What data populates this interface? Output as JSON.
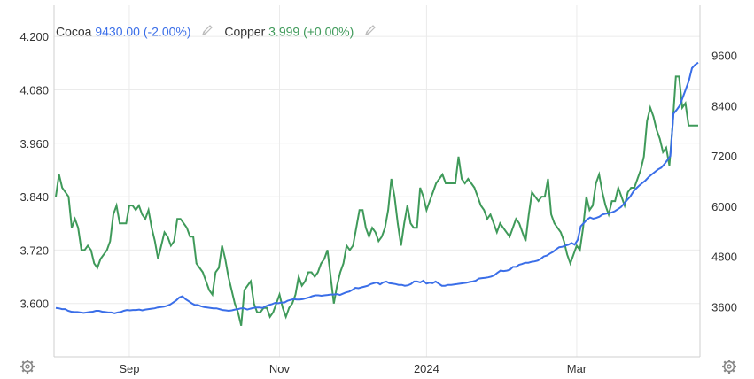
{
  "legend": {
    "cocoa": {
      "name": "Cocoa",
      "value": "9430.00",
      "change": "(-2.00%)",
      "color": "#3a6ee8"
    },
    "copper": {
      "name": "Copper",
      "value": "3.999",
      "change": "(+0.00%)",
      "color": "#3f9a5a"
    }
  },
  "icons": {
    "legend_edit": "pencil-icon",
    "settings": "gear-icon"
  },
  "chart_data": {
    "type": "line",
    "title": "",
    "x": {
      "tick_labels": [
        "Sep",
        "Nov",
        "2024",
        "Mar"
      ]
    },
    "left_axis": {
      "series": "Copper",
      "ticks": [
        "3.600",
        "3.720",
        "3.840",
        "3.960",
        "4.080",
        "4.200"
      ],
      "range": [
        3.48,
        4.27
      ]
    },
    "right_axis": {
      "series": "Cocoa",
      "ticks": [
        "3600",
        "4800",
        "6000",
        "7200",
        "8400",
        "9600"
      ],
      "range": [
        2400,
        10800
      ]
    },
    "grid": true,
    "series": [
      {
        "name": "Copper",
        "axis": "left",
        "color": "#3f9a5a",
        "values": [
          3.84,
          3.89,
          3.86,
          3.85,
          3.84,
          3.77,
          3.79,
          3.77,
          3.72,
          3.72,
          3.73,
          3.72,
          3.69,
          3.68,
          3.7,
          3.71,
          3.72,
          3.74,
          3.8,
          3.82,
          3.78,
          3.78,
          3.78,
          3.82,
          3.82,
          3.81,
          3.82,
          3.8,
          3.79,
          3.81,
          3.77,
          3.74,
          3.7,
          3.73,
          3.76,
          3.75,
          3.73,
          3.74,
          3.79,
          3.79,
          3.78,
          3.77,
          3.75,
          3.75,
          3.69,
          3.68,
          3.67,
          3.65,
          3.63,
          3.62,
          3.67,
          3.68,
          3.73,
          3.7,
          3.66,
          3.63,
          3.6,
          3.58,
          3.55,
          3.63,
          3.64,
          3.65,
          3.6,
          3.58,
          3.58,
          3.59,
          3.59,
          3.57,
          3.58,
          3.6,
          3.62,
          3.59,
          3.57,
          3.59,
          3.6,
          3.62,
          3.66,
          3.64,
          3.65,
          3.67,
          3.67,
          3.66,
          3.67,
          3.69,
          3.7,
          3.72,
          3.66,
          3.6,
          3.64,
          3.67,
          3.69,
          3.73,
          3.72,
          3.73,
          3.77,
          3.81,
          3.81,
          3.77,
          3.75,
          3.77,
          3.76,
          3.74,
          3.75,
          3.77,
          3.81,
          3.88,
          3.84,
          3.78,
          3.73,
          3.78,
          3.82,
          3.78,
          3.77,
          3.77,
          3.86,
          3.84,
          3.81,
          3.83,
          3.85,
          3.87,
          3.88,
          3.89,
          3.87,
          3.87,
          3.87,
          3.87,
          3.93,
          3.88,
          3.87,
          3.88,
          3.87,
          3.86,
          3.84,
          3.82,
          3.81,
          3.79,
          3.8,
          3.78,
          3.76,
          3.78,
          3.77,
          3.76,
          3.75,
          3.77,
          3.79,
          3.78,
          3.76,
          3.74,
          3.8,
          3.85,
          3.84,
          3.83,
          3.84,
          3.84,
          3.88,
          3.8,
          3.78,
          3.77,
          3.76,
          3.74,
          3.71,
          3.69,
          3.71,
          3.73,
          3.72,
          3.77,
          3.84,
          3.81,
          3.82,
          3.87,
          3.89,
          3.85,
          3.82,
          3.8,
          3.83,
          3.83,
          3.86,
          3.84,
          3.82,
          3.85,
          3.86,
          3.86,
          3.88,
          3.9,
          3.93,
          4.01,
          4.04,
          4.02,
          3.99,
          3.97,
          3.94,
          3.95,
          3.91,
          4.0,
          4.11,
          4.11,
          4.04,
          4.05,
          4.0,
          4.0,
          4.0,
          4.0
        ]
      },
      {
        "name": "Cocoa",
        "axis": "right",
        "color": "#3a6ee8",
        "values": [
          3570,
          3560,
          3540,
          3540,
          3500,
          3480,
          3470,
          3470,
          3460,
          3450,
          3460,
          3470,
          3480,
          3500,
          3500,
          3480,
          3470,
          3460,
          3460,
          3440,
          3460,
          3470,
          3500,
          3520,
          3510,
          3520,
          3520,
          3530,
          3510,
          3530,
          3540,
          3550,
          3560,
          3580,
          3590,
          3600,
          3620,
          3650,
          3700,
          3750,
          3820,
          3850,
          3780,
          3730,
          3680,
          3640,
          3640,
          3610,
          3590,
          3580,
          3570,
          3560,
          3560,
          3540,
          3520,
          3510,
          3500,
          3510,
          3530,
          3540,
          3560,
          3560,
          3530,
          3550,
          3570,
          3580,
          3580,
          3570,
          3610,
          3640,
          3660,
          3690,
          3680,
          3700,
          3700,
          3740,
          3760,
          3780,
          3770,
          3770,
          3780,
          3800,
          3820,
          3850,
          3870,
          3870,
          3860,
          3870,
          3880,
          3890,
          3890,
          3900,
          3880,
          3910,
          3940,
          3960,
          4000,
          4050,
          4040,
          4060,
          4080,
          4100,
          4140,
          4160,
          4180,
          4130,
          4180,
          4200,
          4160,
          4150,
          4140,
          4120,
          4120,
          4100,
          4110,
          4140,
          4200,
          4200,
          4180,
          4220,
          4150,
          4170,
          4160,
          4200,
          4150,
          4100,
          4100,
          4120,
          4120,
          4130,
          4140,
          4150,
          4160,
          4170,
          4190,
          4200,
          4220,
          4270,
          4280,
          4290,
          4300,
          4320,
          4350,
          4410,
          4460,
          4450,
          4460,
          4480,
          4550,
          4550,
          4600,
          4620,
          4650,
          4650,
          4670,
          4680,
          4700,
          4740,
          4800,
          4820,
          4870,
          4910,
          4970,
          5020,
          5030,
          5060,
          5080,
          5120,
          5080,
          5200,
          5520,
          5600,
          5680,
          5730,
          5700,
          5720,
          5750,
          5800,
          5820,
          5830,
          5850,
          5880,
          5930,
          5980,
          6060,
          6150,
          6230,
          6350,
          6430,
          6500,
          6560,
          6620,
          6700,
          6760,
          6820,
          6880,
          6920,
          7000,
          7100,
          7200,
          8210,
          8300,
          8400,
          8600,
          8800,
          9000,
          9300,
          9380,
          9430
        ]
      }
    ]
  }
}
